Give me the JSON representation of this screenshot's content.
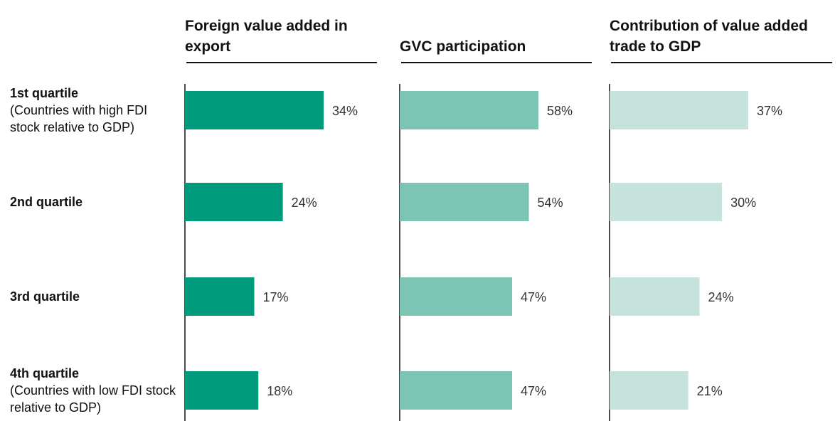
{
  "chart_data": {
    "type": "bar",
    "orientation": "horizontal",
    "categories": [
      "1st quartile",
      "2nd quartile",
      "3rd quartile",
      "4th quartile"
    ],
    "category_notes": [
      "(Countries with high FDI stock relative to GDP)",
      null,
      null,
      "(Countries with low FDI stock relative to GDP)"
    ],
    "series": [
      {
        "name": "Foreign value added in export",
        "color": "#009b7d",
        "values": [
          34,
          24,
          17,
          18
        ],
        "value_labels": [
          "34%",
          "24%",
          "17%",
          "18%"
        ]
      },
      {
        "name": "GVC participation",
        "color": "#7cc4b4",
        "values": [
          58,
          54,
          47,
          47
        ],
        "value_labels": [
          "58%",
          "54%",
          "47%",
          "47%"
        ]
      },
      {
        "name": "Contribution of value added trade to GDP",
        "color": "#c5e3dc",
        "values": [
          37,
          30,
          24,
          21
        ],
        "value_labels": [
          "37%",
          "30%",
          "24%",
          "21%"
        ]
      }
    ]
  }
}
